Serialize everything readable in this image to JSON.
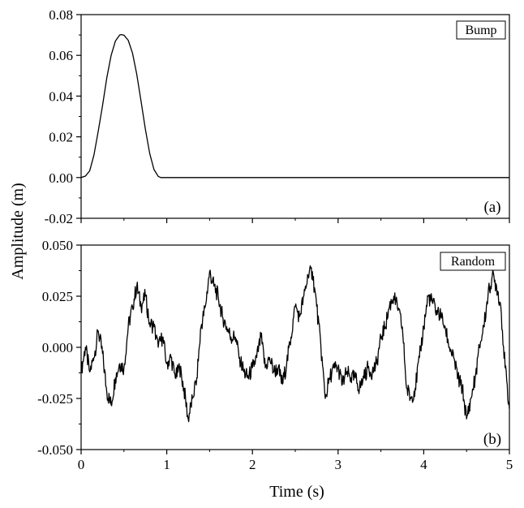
{
  "chart_data": [
    {
      "type": "line",
      "panel_label": "(a)",
      "legend": "Bump",
      "xlabel": "Time (s)",
      "ylabel": "Amplitude (m)",
      "xlim": [
        0,
        5
      ],
      "ylim": [
        -0.02,
        0.08
      ],
      "x_ticks": [
        "0",
        "1",
        "2",
        "3",
        "4",
        "5"
      ],
      "y_ticks": [
        "-0.02",
        "0.00",
        "0.02",
        "0.04",
        "0.06",
        "0.08"
      ],
      "series": [
        {
          "x": [
            0,
            0.05,
            0.1,
            0.15,
            0.2,
            0.25,
            0.3,
            0.35,
            0.4,
            0.45,
            0.47,
            0.5,
            0.55,
            0.6,
            0.65,
            0.7,
            0.75,
            0.8,
            0.85,
            0.9,
            0.93,
            1.0,
            2.0,
            3.0,
            4.0,
            5.0
          ],
          "y": [
            0.0,
            0.0007,
            0.0033,
            0.0111,
            0.0228,
            0.0353,
            0.049,
            0.0599,
            0.067,
            0.07,
            0.0702,
            0.0699,
            0.0674,
            0.0611,
            0.0506,
            0.0374,
            0.0238,
            0.012,
            0.004,
            0.0006,
            0.0,
            0.0,
            0.0,
            0.0,
            0.0,
            0.0
          ]
        }
      ]
    },
    {
      "type": "line",
      "panel_label": "(b)",
      "legend": "Random",
      "xlabel": "Time (s)",
      "ylabel": "Amplitude (m)",
      "xlim": [
        0,
        5
      ],
      "ylim": [
        -0.05,
        0.05
      ],
      "x_ticks": [
        "0",
        "1",
        "2",
        "3",
        "4",
        "5"
      ],
      "y_ticks": [
        "-0.050",
        "-0.025",
        "0.000",
        "0.025",
        "0.050"
      ],
      "series": [
        {
          "x": [
            0.0,
            0.05,
            0.1,
            0.15,
            0.2,
            0.25,
            0.3,
            0.35,
            0.4,
            0.45,
            0.5,
            0.55,
            0.6,
            0.65,
            0.7,
            0.75,
            0.8,
            0.85,
            0.9,
            0.95,
            1.0,
            1.05,
            1.1,
            1.15,
            1.2,
            1.25,
            1.3,
            1.35,
            1.4,
            1.45,
            1.5,
            1.55,
            1.6,
            1.65,
            1.7,
            1.75,
            1.8,
            1.85,
            1.9,
            1.95,
            2.0,
            2.05,
            2.1,
            2.15,
            2.2,
            2.25,
            2.3,
            2.35,
            2.4,
            2.45,
            2.5,
            2.55,
            2.6,
            2.65,
            2.7,
            2.75,
            2.8,
            2.85,
            2.9,
            2.95,
            3.0,
            3.05,
            3.1,
            3.15,
            3.2,
            3.25,
            3.3,
            3.35,
            3.4,
            3.45,
            3.5,
            3.55,
            3.6,
            3.65,
            3.7,
            3.75,
            3.8,
            3.85,
            3.9,
            3.95,
            4.0,
            4.05,
            4.1,
            4.15,
            4.2,
            4.25,
            4.3,
            4.35,
            4.4,
            4.45,
            4.5,
            4.55,
            4.6,
            4.65,
            4.7,
            4.75,
            4.8,
            4.85,
            4.9,
            4.95,
            5.0
          ],
          "y": [
            -0.012,
            0.0,
            -0.012,
            -0.005,
            0.008,
            -0.003,
            -0.022,
            -0.028,
            -0.015,
            -0.008,
            -0.01,
            0.01,
            0.02,
            0.03,
            0.02,
            0.025,
            0.012,
            0.01,
            0.0,
            0.005,
            -0.008,
            -0.005,
            -0.015,
            -0.01,
            -0.02,
            -0.035,
            -0.025,
            -0.015,
            0.01,
            0.02,
            0.037,
            0.03,
            0.025,
            0.015,
            0.01,
            0.005,
            0.005,
            -0.005,
            -0.012,
            -0.015,
            -0.01,
            -0.005,
            0.005,
            -0.01,
            -0.005,
            -0.012,
            -0.01,
            -0.018,
            -0.008,
            0.005,
            0.02,
            0.015,
            0.025,
            0.035,
            0.037,
            0.02,
            0.0,
            -0.025,
            -0.015,
            -0.01,
            -0.01,
            -0.018,
            -0.012,
            -0.015,
            -0.015,
            -0.02,
            -0.015,
            -0.01,
            -0.012,
            -0.008,
            0.005,
            0.01,
            0.02,
            0.025,
            0.018,
            0.01,
            -0.02,
            -0.025,
            -0.02,
            -0.005,
            0.01,
            0.025,
            0.022,
            0.018,
            0.015,
            0.01,
            0.0,
            -0.005,
            -0.015,
            -0.02,
            -0.035,
            -0.025,
            -0.015,
            0.0,
            0.01,
            0.025,
            0.035,
            0.03,
            0.02,
            -0.01,
            -0.03
          ]
        }
      ]
    }
  ],
  "shared": {
    "xlabel": "Time (s)",
    "ylabel": "Amplitude (m)"
  }
}
